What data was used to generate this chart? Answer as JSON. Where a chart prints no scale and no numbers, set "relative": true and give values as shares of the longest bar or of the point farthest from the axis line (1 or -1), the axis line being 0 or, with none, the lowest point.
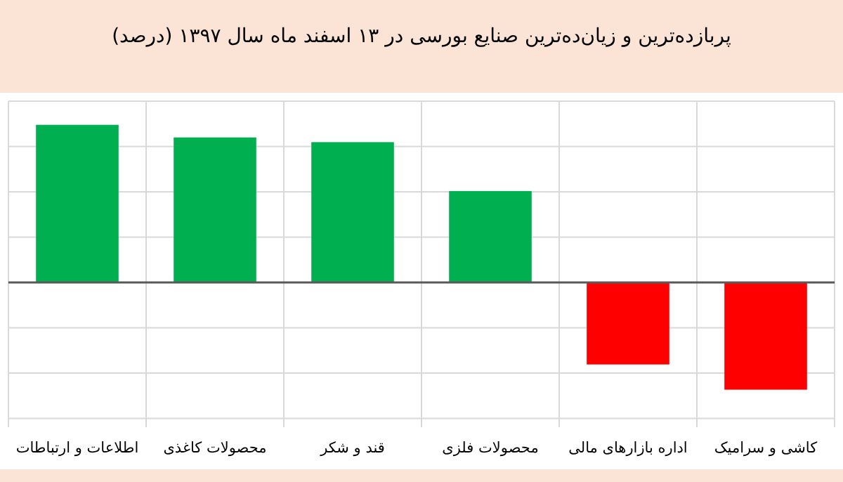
{
  "chart_data": {
    "type": "bar",
    "title": "پربازده‌ترین و زیان‌ده‌ترین صنایع بورسی در ۱۳ اسفند ماه سال ۱۳۹۷ (درصد)",
    "categories": [
      "اطلاعات و ارتباطات",
      "محصولات کاغذی",
      "قند و شکر",
      "محصولات فلزی",
      "اداره بازارهای مالی",
      "کاشی و سرامیک"
    ],
    "values": [
      1,
      0.92,
      0.89,
      0.58,
      -0.52,
      -0.68
    ],
    "colors": [
      "#00b050",
      "#00b050",
      "#00b050",
      "#00b050",
      "#ff0000",
      "#ff0000"
    ],
    "relative": true,
    "grid": true
  }
}
